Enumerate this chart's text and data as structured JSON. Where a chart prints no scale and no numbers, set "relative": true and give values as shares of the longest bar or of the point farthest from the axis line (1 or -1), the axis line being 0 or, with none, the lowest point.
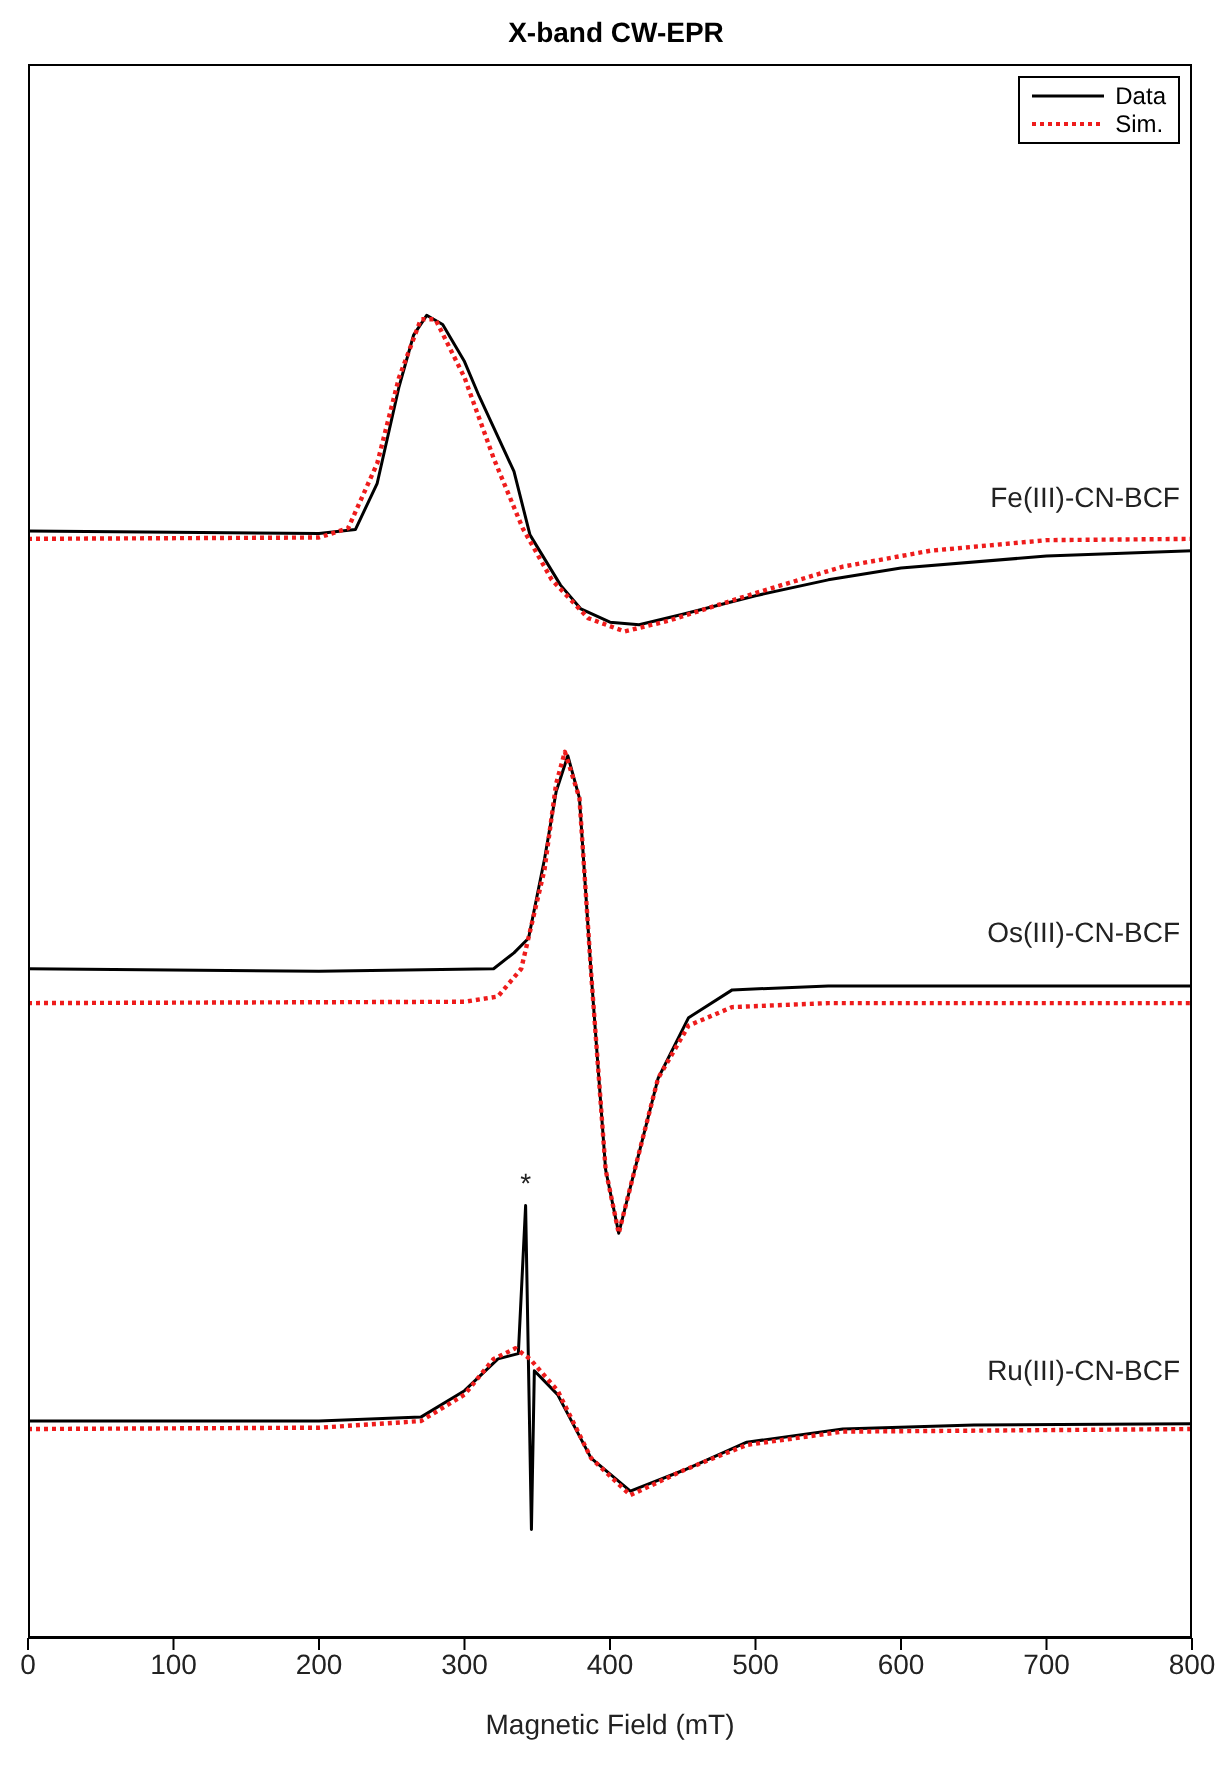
{
  "chart_data": {
    "type": "line",
    "title": "X-band CW-EPR",
    "xlabel": "Magnetic Field (mT)",
    "relative": true,
    "xlim": [
      0,
      800
    ],
    "xticks": [
      0,
      100,
      200,
      300,
      400,
      500,
      600,
      700,
      800
    ],
    "grid": false,
    "legend": "top right",
    "marker": "none",
    "series": [
      {
        "name": "Data",
        "color": "#000000",
        "line_style": "solid",
        "x": [
          0,
          100,
          200,
          225,
          240,
          255,
          265,
          274,
          285,
          300,
          310,
          334,
          345,
          366,
          380,
          400,
          420,
          450,
          500,
          550,
          600,
          700,
          800
        ],
        "values": [
          0.837,
          0.836,
          0.835,
          0.838,
          0.873,
          0.946,
          0.985,
          1.0,
          0.993,
          0.965,
          0.939,
          0.882,
          0.834,
          0.796,
          0.778,
          0.768,
          0.766,
          0.774,
          0.788,
          0.8,
          0.809,
          0.818,
          0.822
        ]
      },
      {
        "name": "Sim.",
        "color": "#ee1c1c",
        "line_style": "dotted",
        "x": [
          0,
          200,
          220,
          240,
          255,
          270,
          280,
          300,
          320,
          340,
          360,
          385,
          410,
          440,
          500,
          560,
          620,
          700,
          800
        ],
        "values": [
          0.831,
          0.832,
          0.839,
          0.888,
          0.953,
          0.997,
          0.997,
          0.953,
          0.892,
          0.839,
          0.8,
          0.771,
          0.761,
          0.769,
          0.79,
          0.81,
          0.822,
          0.83,
          0.831
        ]
      },
      {
        "color": "#000000",
        "line_style": "solid",
        "x": [
          0,
          200,
          320,
          334,
          344,
          355,
          363,
          371,
          379,
          387,
          397,
          406,
          417,
          433,
          454,
          484,
          550,
          800
        ],
        "values": [
          0.506,
          0.504,
          0.506,
          0.518,
          0.529,
          0.589,
          0.64,
          0.667,
          0.635,
          0.503,
          0.354,
          0.306,
          0.354,
          0.423,
          0.469,
          0.49,
          0.493,
          0.493
        ]
      },
      {
        "color": "#ee1c1c",
        "line_style": "dotted",
        "x": [
          0,
          300,
          323,
          339,
          355,
          363,
          369,
          379,
          387,
          397,
          406,
          417,
          433,
          454,
          484,
          550,
          800
        ],
        "values": [
          0.48,
          0.481,
          0.485,
          0.506,
          0.581,
          0.646,
          0.67,
          0.635,
          0.503,
          0.354,
          0.306,
          0.354,
          0.423,
          0.463,
          0.477,
          0.48,
          0.48
        ]
      },
      {
        "color": "#000000",
        "line_style": "solid",
        "x": [
          0,
          200,
          270,
          300,
          323,
          337,
          342,
          346,
          348,
          364,
          387,
          414,
          451,
          494,
          560,
          650,
          800
        ],
        "values": [
          0.164,
          0.164,
          0.167,
          0.187,
          0.211,
          0.215,
          0.327,
          0.082,
          0.202,
          0.184,
          0.136,
          0.111,
          0.127,
          0.148,
          0.158,
          0.161,
          0.162
        ]
      },
      {
        "color": "#ee1c1c",
        "line_style": "dotted",
        "x": [
          0,
          200,
          270,
          300,
          320,
          335,
          345,
          364,
          387,
          414,
          451,
          494,
          560,
          800
        ],
        "values": [
          0.158,
          0.159,
          0.164,
          0.184,
          0.211,
          0.219,
          0.211,
          0.187,
          0.136,
          0.108,
          0.127,
          0.146,
          0.156,
          0.158
        ]
      }
    ],
    "annotations": [
      "Fe(III)-CN-BCF",
      "Os(III)-CN-BCF",
      "Ru(III)-CN-BCF",
      {
        "text": "*",
        "x": 342,
        "y": 0.327
      }
    ]
  }
}
